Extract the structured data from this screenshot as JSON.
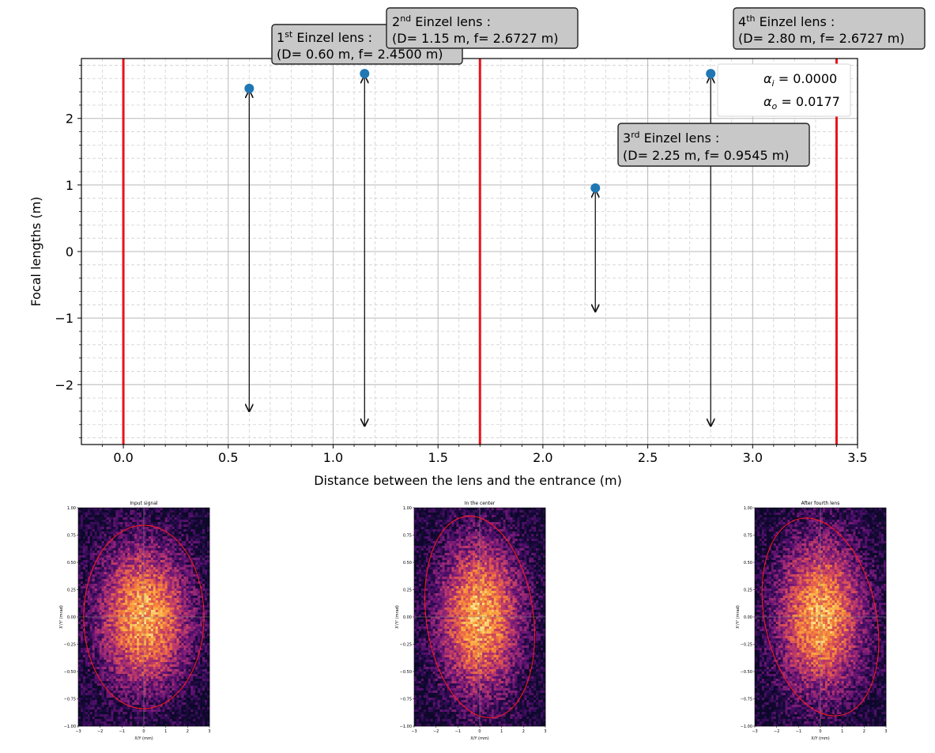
{
  "chart_data": [
    {
      "type": "scatter",
      "title": "",
      "xlabel": "Distance between the lens and the entrance (m)",
      "ylabel": "Focal lengths (m)",
      "xlim": [
        -0.2,
        3.5
      ],
      "ylim": [
        -2.9,
        2.9
      ],
      "xticks": [
        0.0,
        0.5,
        1.0,
        1.5,
        2.0,
        2.5,
        3.0,
        3.5
      ],
      "xtick_labels": [
        "0.0",
        "0.5",
        "1.0",
        "1.5",
        "2.0",
        "2.5",
        "3.0",
        "3.5"
      ],
      "yticks": [
        -2,
        -1,
        0,
        1,
        2
      ],
      "ytick_labels": [
        "−2",
        "−1",
        "0",
        "1",
        "2"
      ],
      "grid": true,
      "marker_color": "#1f77b4",
      "boundary_color": "#e8141b",
      "boundaries_x": [
        0.0,
        1.7,
        3.4
      ],
      "lenses": [
        {
          "sup_base": "1",
          "sup": "st",
          "name": " Einzel lens :",
          "params": "(D= 0.60 m, f= 2.4500 m)",
          "x": 0.6,
          "f": 2.45,
          "arrow_bottom": -2.4
        },
        {
          "sup_base": "2",
          "sup": "nd",
          "name": " Einzel lens :",
          "params": "(D= 1.15 m, f= 2.6727 m)",
          "x": 1.15,
          "f": 2.6727,
          "arrow_bottom": -2.62
        },
        {
          "sup_base": "3",
          "sup": "rd",
          "name": " Einzel lens :",
          "params": "(D= 2.25 m, f= 0.9545 m)",
          "x": 2.25,
          "f": 0.9545,
          "arrow_bottom": -0.9
        },
        {
          "sup_base": "4",
          "sup": "th",
          "name": " Einzel lens :",
          "params": "(D= 2.80 m, f= 2.6727 m)",
          "x": 2.8,
          "f": 2.6727,
          "arrow_bottom": -2.62
        }
      ],
      "legend": {
        "placement": "top-right",
        "entries": [
          {
            "sym": "α",
            "sub": "i",
            "value": " = 0.0000"
          },
          {
            "sym": "α",
            "sub": "o",
            "value": " = 0.0177"
          }
        ]
      }
    },
    {
      "type": "heatmap",
      "title": "Input signal",
      "xlabel": "X/Y (mm)",
      "ylabel": "X'/Y' (mrad)",
      "xlim": [
        -3,
        3
      ],
      "ylim": [
        -1.0,
        1.0
      ],
      "xtick_labels": [
        "−3",
        "−2",
        "−1",
        "0",
        "1",
        "2",
        "3"
      ],
      "ytick_labels": [
        "1.00",
        "0.75",
        "0.50",
        "0.25",
        "0.00",
        "−0.25",
        "−0.50",
        "−0.75",
        "−1.00"
      ],
      "ellipse": {
        "cx": 0.0,
        "cy": 0.0,
        "rx": 2.75,
        "ry": 0.84,
        "angle_deg": 0
      }
    },
    {
      "type": "heatmap",
      "title": "In the center",
      "xlabel": "X/Y (mm)",
      "ylabel": "X'/Y' (mrad)",
      "xlim": [
        -3,
        3
      ],
      "ylim": [
        -1.0,
        1.0
      ],
      "xtick_labels": [
        "−3",
        "−2",
        "−1",
        "0",
        "1",
        "2",
        "3"
      ],
      "ytick_labels": [
        "1.00",
        "0.75",
        "0.50",
        "0.25",
        "0.00",
        "−0.25",
        "−0.50",
        "−0.75",
        "−1.00"
      ],
      "ellipse": {
        "cx": 0.0,
        "cy": 0.0,
        "rx": 2.45,
        "ry": 0.93,
        "angle_deg": -8
      }
    },
    {
      "type": "heatmap",
      "title": "After fourth lens",
      "xlabel": "X/Y (mm)",
      "ylabel": "X'/Y' (mrad)",
      "xlim": [
        -3,
        3
      ],
      "ylim": [
        -1.0,
        1.0
      ],
      "xtick_labels": [
        "−3",
        "−2",
        "−1",
        "0",
        "1",
        "2",
        "3"
      ],
      "ytick_labels": [
        "1.00",
        "0.75",
        "0.50",
        "0.25",
        "0.00",
        "−0.25",
        "−0.50",
        "−0.75",
        "−1.00"
      ],
      "ellipse": {
        "cx": 0.0,
        "cy": 0.0,
        "rx": 2.55,
        "ry": 0.92,
        "angle_deg": -12
      }
    }
  ]
}
